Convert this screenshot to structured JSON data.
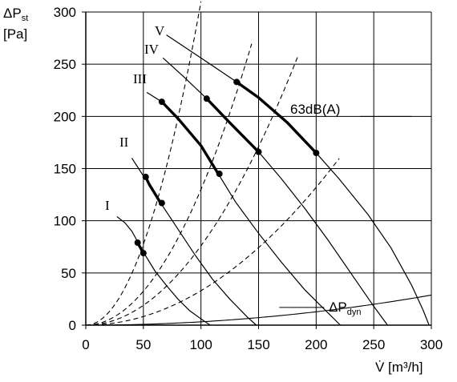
{
  "chart_data": {
    "type": "line",
    "ylabel": {
      "main": "ΔP",
      "sub": "st",
      "unit": "[Pa]"
    },
    "xlabel": "V̇ [m³/h]",
    "xlim": [
      0,
      300
    ],
    "ylim": [
      0,
      300
    ],
    "xticks": [
      0,
      50,
      100,
      150,
      200,
      250,
      300
    ],
    "yticks": [
      0,
      50,
      100,
      150,
      200,
      250,
      300
    ],
    "grid": true,
    "series": [
      {
        "name": "I",
        "points": [
          [
            27,
            104
          ],
          [
            34,
            98
          ],
          [
            40,
            90
          ],
          [
            45,
            80
          ],
          [
            50,
            70
          ],
          [
            60,
            52
          ],
          [
            70,
            38
          ],
          [
            80,
            25
          ],
          [
            90,
            14
          ],
          [
            100,
            6
          ],
          [
            108,
            0
          ]
        ],
        "highlight": [
          [
            45,
            79
          ],
          [
            50,
            69
          ]
        ]
      },
      {
        "name": "II",
        "points": [
          [
            40,
            160
          ],
          [
            50,
            143
          ],
          [
            55,
            135
          ],
          [
            65,
            117
          ],
          [
            80,
            92
          ],
          [
            95,
            67
          ],
          [
            110,
            44
          ],
          [
            125,
            25
          ],
          [
            140,
            8
          ],
          [
            148,
            0
          ]
        ],
        "highlight": [
          [
            52,
            142
          ],
          [
            66,
            117
          ]
        ]
      },
      {
        "name": "III",
        "points": [
          [
            53,
            223
          ],
          [
            66,
            214
          ],
          [
            80,
            198
          ],
          [
            100,
            172
          ],
          [
            115,
            145
          ],
          [
            130,
            118
          ],
          [
            150,
            88
          ],
          [
            170,
            60
          ],
          [
            190,
            34
          ],
          [
            210,
            12
          ],
          [
            221,
            0
          ]
        ],
        "highlight": [
          [
            66,
            214
          ],
          [
            116,
            145
          ]
        ]
      },
      {
        "name": "IV",
        "points": [
          [
            67,
            256
          ],
          [
            85,
            238
          ],
          [
            105,
            217
          ],
          [
            125,
            194
          ],
          [
            150,
            166
          ],
          [
            170,
            140
          ],
          [
            190,
            112
          ],
          [
            210,
            82
          ],
          [
            230,
            50
          ],
          [
            250,
            18
          ],
          [
            262,
            0
          ]
        ],
        "highlight": [
          [
            105,
            217
          ],
          [
            150,
            166
          ]
        ]
      },
      {
        "name": "V",
        "points": [
          [
            70,
            278
          ],
          [
            100,
            256
          ],
          [
            131,
            233
          ],
          [
            150,
            218
          ],
          [
            175,
            194
          ],
          [
            200,
            165
          ],
          [
            220,
            140
          ],
          [
            245,
            106
          ],
          [
            265,
            74
          ],
          [
            283,
            38
          ],
          [
            293,
            14
          ],
          [
            298,
            0
          ]
        ],
        "highlight": [
          [
            131,
            233
          ],
          [
            200,
            165
          ]
        ]
      }
    ],
    "system_curves": [
      {
        "k": 0.031,
        "xmax": 100
      },
      {
        "k": 0.013,
        "xmax": 145
      },
      {
        "k": 0.0076,
        "xmax": 185
      },
      {
        "k": 0.0033,
        "xmax": 220
      }
    ],
    "dyn_curve": {
      "name": "ΔP",
      "sub": "dyn",
      "k": 0.00032,
      "xmax": 300
    },
    "annotations": {
      "noise_label": "63dB(A)",
      "curve_labels": [
        "I",
        "II",
        "III",
        "IV",
        "V"
      ]
    }
  }
}
